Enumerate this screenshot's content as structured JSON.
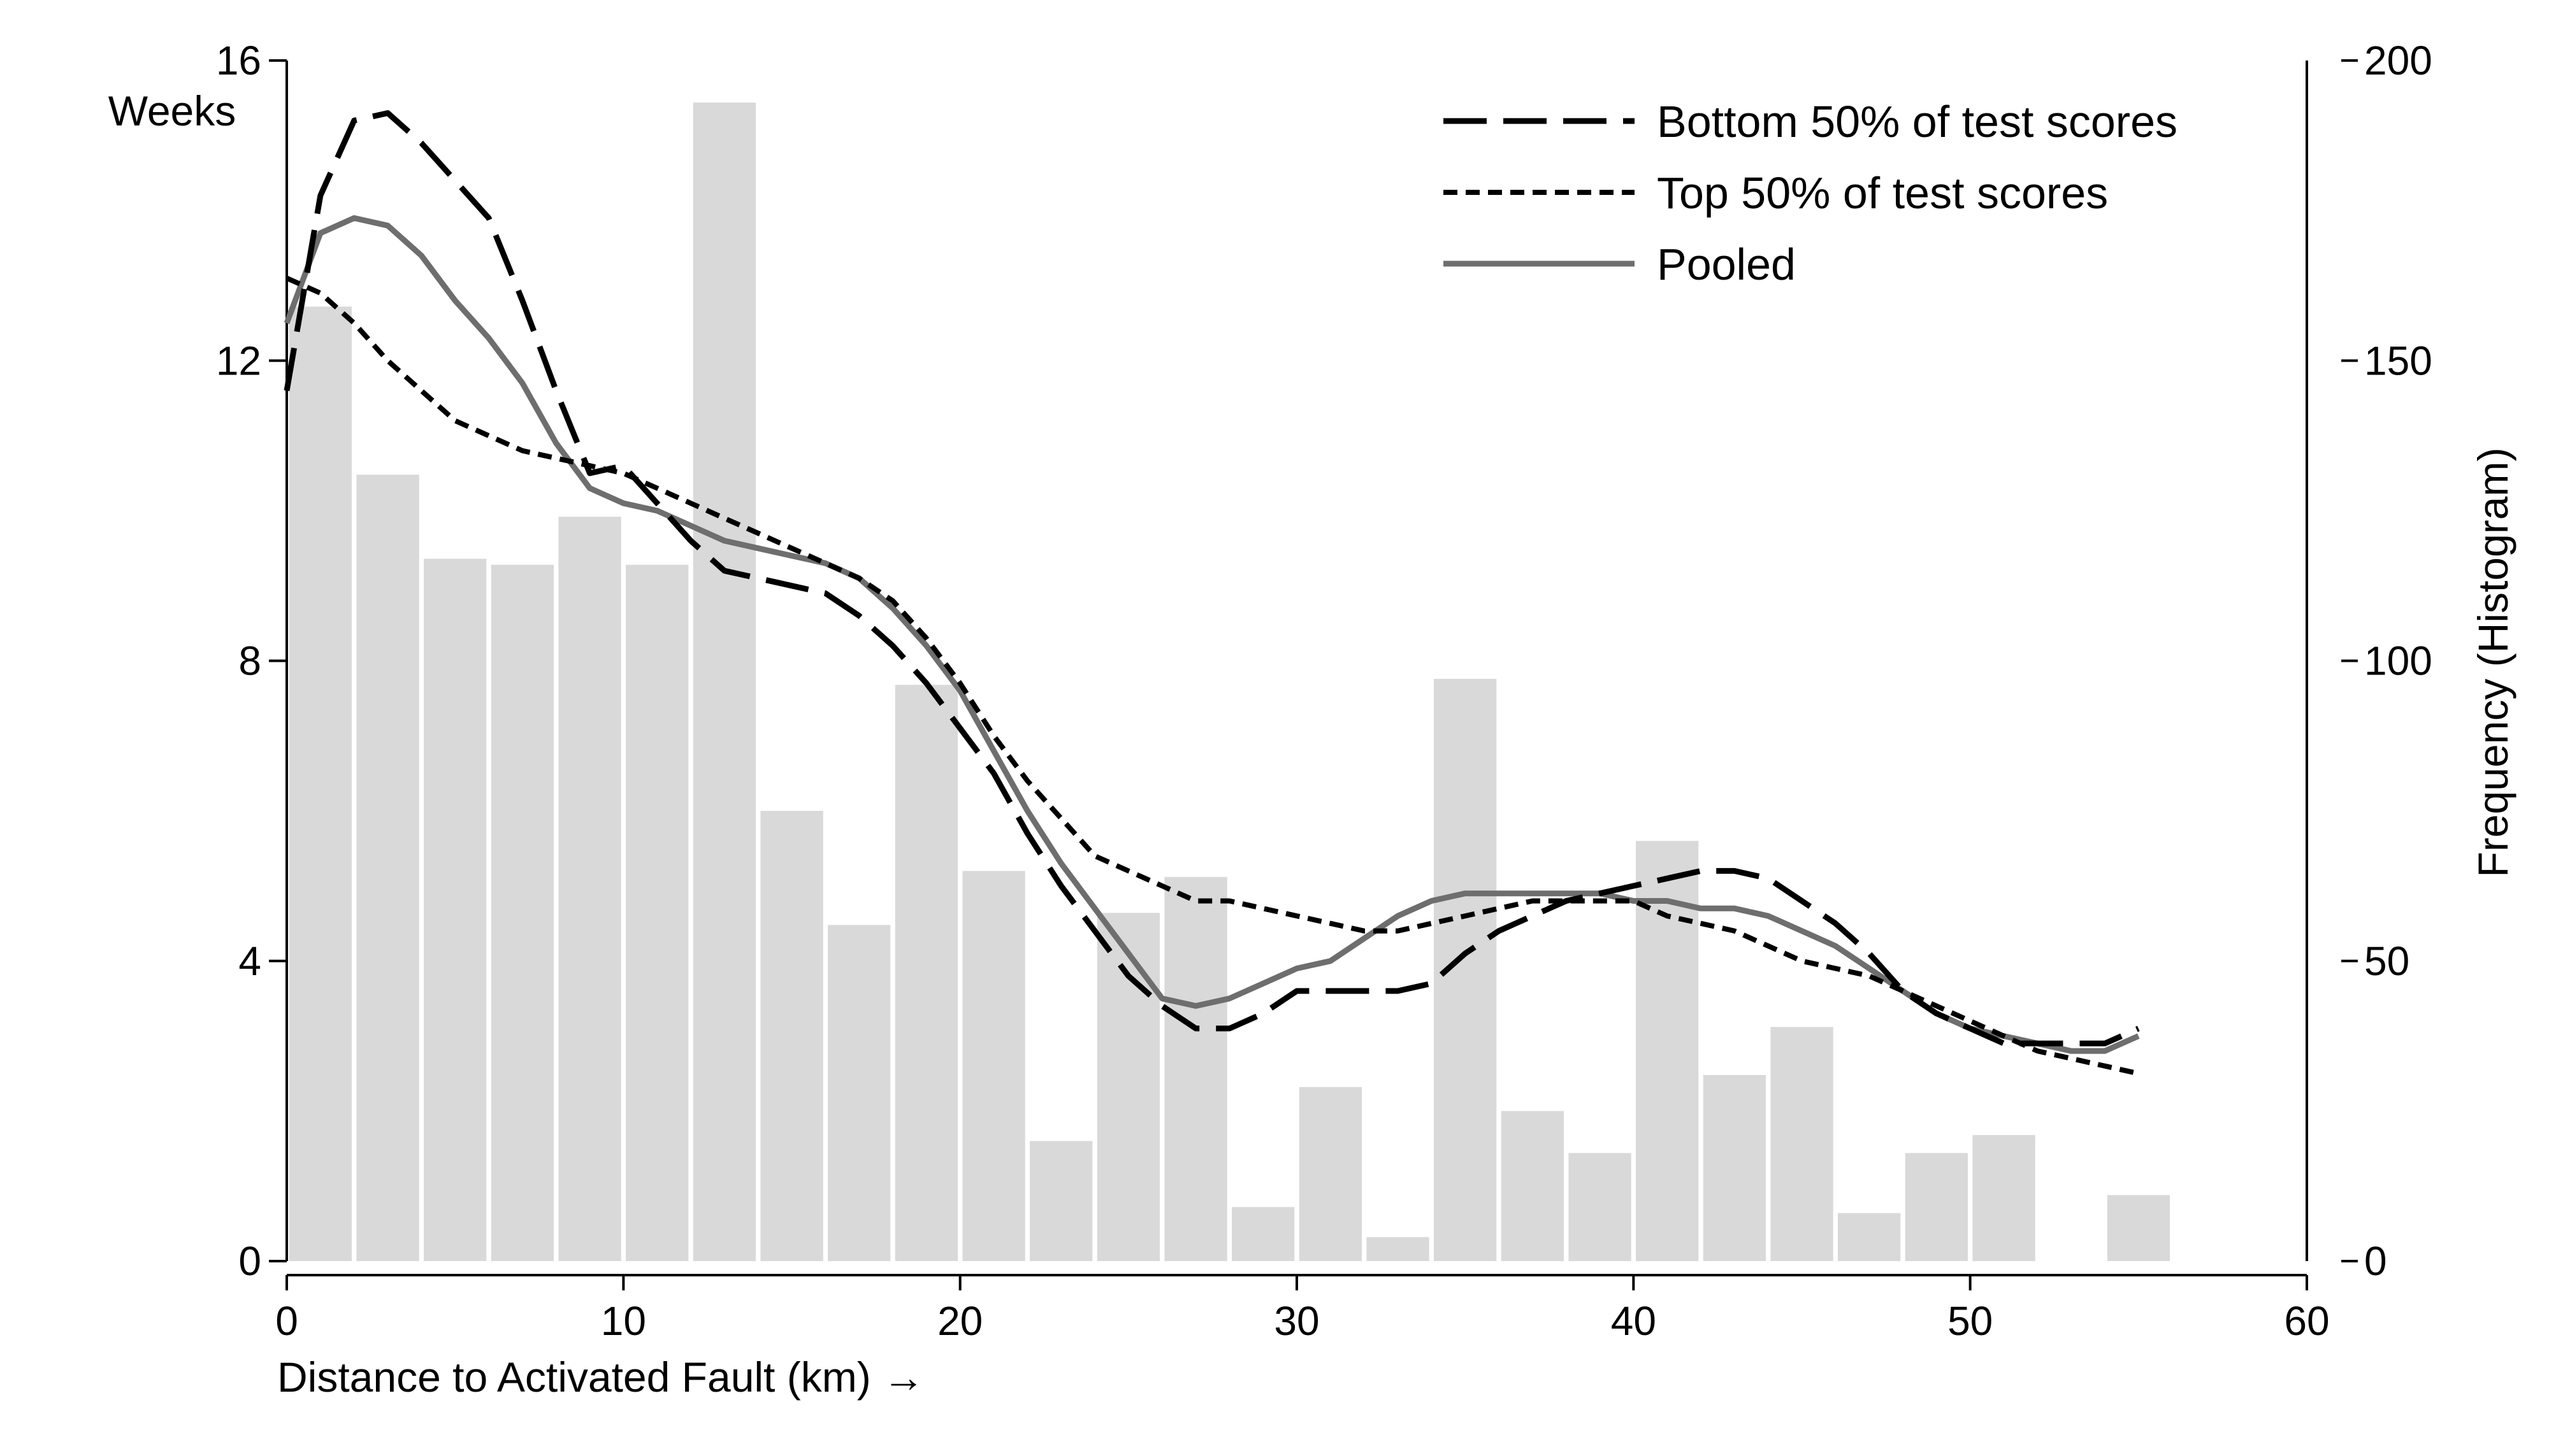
{
  "chart_data": {
    "type": "bar+line",
    "title": "",
    "xlabel": "Distance to Activated Fault (km) →",
    "ylabel_left": "Weeks",
    "ylabel_right": "Frequency (Histogram)",
    "xlim": [
      0,
      60
    ],
    "ylim_left": [
      0,
      16
    ],
    "ylim_right": [
      0,
      200
    ],
    "x_ticks": [
      0,
      10,
      20,
      30,
      40,
      50,
      60
    ],
    "y_left_ticks": [
      0,
      4,
      8,
      12,
      16
    ],
    "y_right_ticks": [
      0,
      50,
      100,
      150,
      200
    ],
    "grid": false,
    "legend_position": "top-right",
    "histogram": {
      "bin_width": 2,
      "bin_starts": [
        0,
        2,
        4,
        6,
        8,
        10,
        12,
        14,
        16,
        18,
        20,
        22,
        24,
        26,
        28,
        30,
        32,
        34,
        36,
        38,
        40,
        42,
        44,
        46,
        48,
        50,
        52,
        54
      ],
      "values": [
        159,
        131,
        117,
        116,
        124,
        116,
        193,
        75,
        56,
        96,
        65,
        20,
        58,
        64,
        9,
        29,
        4,
        97,
        25,
        18,
        70,
        31,
        39,
        8,
        18,
        21,
        0,
        11
      ],
      "color": "#d9d9d9"
    },
    "series": [
      {
        "name": "Bottom 50% of test scores",
        "style": "long-dash",
        "color": "#000000",
        "x": [
          0,
          1,
          2,
          3,
          4,
          5,
          6,
          7,
          8,
          9,
          10,
          11,
          12,
          13,
          14,
          15,
          16,
          17,
          18,
          19,
          20,
          21,
          22,
          23,
          24,
          25,
          26,
          27,
          28,
          29,
          30,
          31,
          32,
          33,
          34,
          35,
          36,
          37,
          38,
          39,
          40,
          41,
          42,
          43,
          44,
          45,
          46,
          47,
          48,
          49,
          50,
          51,
          52,
          53,
          54,
          55
        ],
        "y": [
          11.6,
          14.2,
          15.2,
          15.3,
          14.9,
          14.4,
          13.9,
          12.8,
          11.6,
          10.5,
          10.6,
          10.1,
          9.6,
          9.2,
          9.1,
          9.0,
          8.9,
          8.6,
          8.2,
          7.7,
          7.1,
          6.5,
          5.7,
          5.0,
          4.4,
          3.8,
          3.4,
          3.1,
          3.1,
          3.3,
          3.6,
          3.6,
          3.6,
          3.6,
          3.7,
          4.1,
          4.4,
          4.6,
          4.8,
          4.9,
          5.0,
          5.1,
          5.2,
          5.2,
          5.1,
          4.8,
          4.5,
          4.1,
          3.6,
          3.3,
          3.1,
          2.9,
          2.9,
          2.9,
          2.9,
          3.1
        ]
      },
      {
        "name": "Top 50% of test scores",
        "style": "short-dash",
        "color": "#000000",
        "x": [
          0,
          1,
          2,
          3,
          4,
          5,
          6,
          7,
          8,
          9,
          10,
          11,
          12,
          13,
          14,
          15,
          16,
          17,
          18,
          19,
          20,
          21,
          22,
          23,
          24,
          25,
          26,
          27,
          28,
          29,
          30,
          31,
          32,
          33,
          34,
          35,
          36,
          37,
          38,
          39,
          40,
          41,
          42,
          43,
          44,
          45,
          46,
          47,
          48,
          49,
          50,
          51,
          52,
          53,
          54,
          55
        ],
        "y": [
          13.1,
          12.9,
          12.5,
          12.0,
          11.6,
          11.2,
          11.0,
          10.8,
          10.7,
          10.6,
          10.5,
          10.3,
          10.1,
          9.9,
          9.7,
          9.5,
          9.3,
          9.1,
          8.8,
          8.3,
          7.7,
          7.0,
          6.4,
          5.9,
          5.4,
          5.2,
          5.0,
          4.8,
          4.8,
          4.7,
          4.6,
          4.5,
          4.4,
          4.4,
          4.5,
          4.6,
          4.7,
          4.8,
          4.8,
          4.8,
          4.8,
          4.6,
          4.5,
          4.4,
          4.2,
          4.0,
          3.9,
          3.8,
          3.6,
          3.4,
          3.2,
          3.0,
          2.8,
          2.7,
          2.6,
          2.5
        ]
      },
      {
        "name": "Pooled",
        "style": "solid",
        "color": "#6e6e6e",
        "x": [
          0,
          1,
          2,
          3,
          4,
          5,
          6,
          7,
          8,
          9,
          10,
          11,
          12,
          13,
          14,
          15,
          16,
          17,
          18,
          19,
          20,
          21,
          22,
          23,
          24,
          25,
          26,
          27,
          28,
          29,
          30,
          31,
          32,
          33,
          34,
          35,
          36,
          37,
          38,
          39,
          40,
          41,
          42,
          43,
          44,
          45,
          46,
          47,
          48,
          49,
          50,
          51,
          52,
          53,
          54,
          55
        ],
        "y": [
          12.5,
          13.7,
          13.9,
          13.8,
          13.4,
          12.8,
          12.3,
          11.7,
          10.9,
          10.3,
          10.1,
          10.0,
          9.8,
          9.6,
          9.5,
          9.4,
          9.3,
          9.1,
          8.7,
          8.2,
          7.6,
          6.8,
          6.0,
          5.3,
          4.7,
          4.1,
          3.5,
          3.4,
          3.5,
          3.7,
          3.9,
          4.0,
          4.3,
          4.6,
          4.8,
          4.9,
          4.9,
          4.9,
          4.9,
          4.9,
          4.8,
          4.8,
          4.7,
          4.7,
          4.6,
          4.4,
          4.2,
          3.9,
          3.6,
          3.3,
          3.1,
          3.0,
          2.9,
          2.8,
          2.8,
          3.0
        ]
      }
    ]
  }
}
